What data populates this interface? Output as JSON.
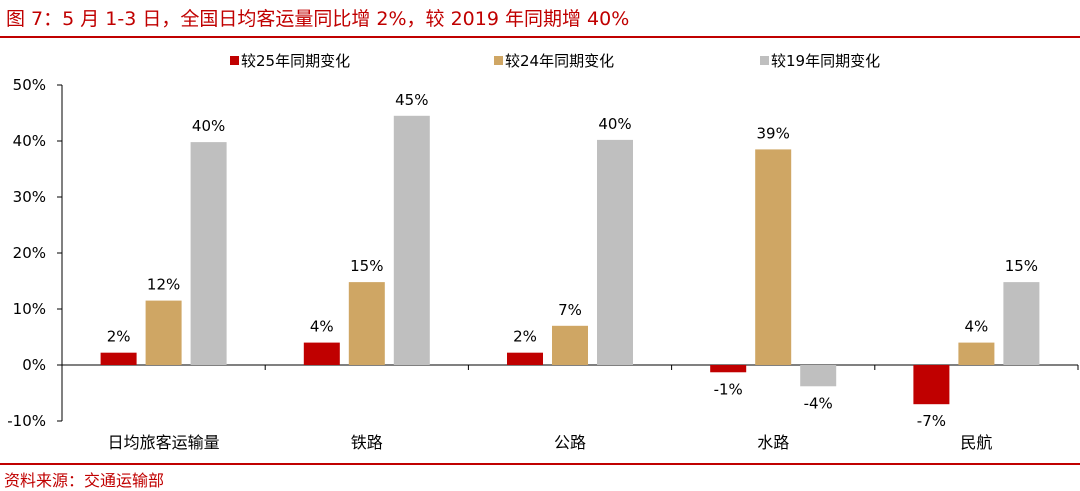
{
  "title": "图 7：5 月 1-3 日，全国日均客运量同比增 2%，较 2019 年同期增 40%",
  "source": "资料来源：交通运输部",
  "chart_data": {
    "type": "bar",
    "title": "",
    "xlabel": "",
    "ylabel": "",
    "categories": [
      "日均旅客运输量",
      "铁路",
      "公路",
      "水路",
      "民航"
    ],
    "series": [
      {
        "name": "较25年同期变化",
        "color": "#c00000",
        "values": [
          2.2,
          4.0,
          2.2,
          -1.3,
          -7.0
        ],
        "labels": [
          "2%",
          "4%",
          "2%",
          "-1%",
          "-7%"
        ]
      },
      {
        "name": "较24年同期变化",
        "color": "#cfa664",
        "values": [
          11.5,
          14.8,
          7.0,
          38.5,
          4.0
        ],
        "labels": [
          "12%",
          "15%",
          "7%",
          "39%",
          "4%"
        ]
      },
      {
        "name": "较19年同期变化",
        "color": "#bfbfbf",
        "values": [
          39.8,
          44.5,
          40.2,
          -3.8,
          14.8
        ],
        "labels": [
          "40%",
          "45%",
          "40%",
          "-4%",
          "15%"
        ]
      }
    ],
    "ylim": [
      -10,
      50
    ],
    "yticks": [
      -10,
      0,
      10,
      20,
      30,
      40,
      50
    ],
    "ytick_labels": [
      "-10%",
      "0%",
      "10%",
      "20%",
      "30%",
      "40%",
      "50%"
    ],
    "legend_position": "top",
    "grid": false
  }
}
